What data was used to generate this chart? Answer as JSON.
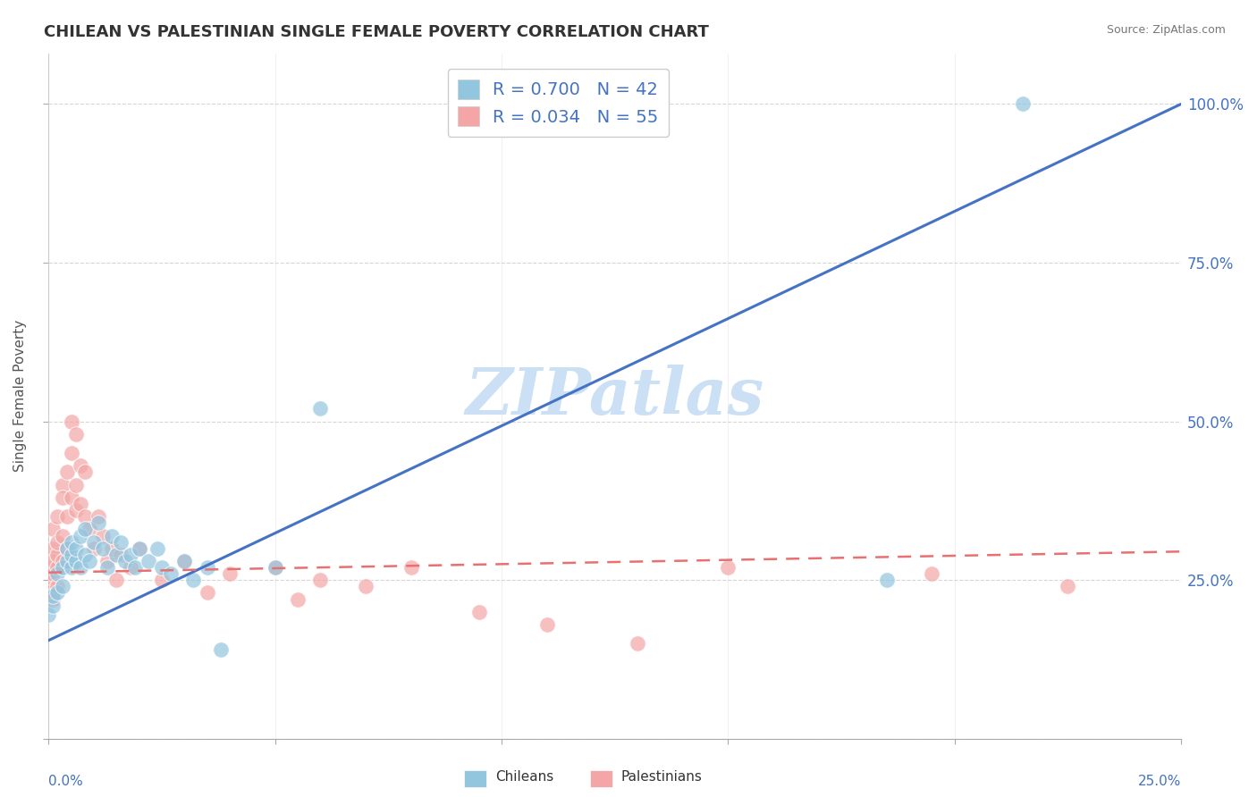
{
  "title": "CHILEAN VS PALESTINIAN SINGLE FEMALE POVERTY CORRELATION CHART",
  "source": "Source: ZipAtlas.com",
  "ylabel": "Single Female Poverty",
  "right_yticklabels": [
    "",
    "25.0%",
    "50.0%",
    "75.0%",
    "100.0%"
  ],
  "legend_entry_1": "R = 0.700   N = 42",
  "legend_entry_2": "R = 0.034   N = 55",
  "chilean_color": "#92c5de",
  "palestinian_color": "#f4a6a6",
  "chilean_trend_color": "#4472c4",
  "palestinian_trend_color": "#e87070",
  "watermark_text": "ZIPatlas",
  "watermark_color": "#cce0f5",
  "background_color": "#ffffff",
  "grid_color": "#cccccc",
  "chileans_scatter_x": [
    0.0,
    0.001,
    0.001,
    0.002,
    0.002,
    0.003,
    0.003,
    0.004,
    0.004,
    0.005,
    0.005,
    0.005,
    0.006,
    0.006,
    0.007,
    0.007,
    0.008,
    0.008,
    0.009,
    0.01,
    0.011,
    0.012,
    0.013,
    0.014,
    0.015,
    0.016,
    0.017,
    0.018,
    0.019,
    0.02,
    0.022,
    0.024,
    0.025,
    0.027,
    0.03,
    0.032,
    0.035,
    0.038,
    0.05,
    0.06,
    0.185,
    0.215
  ],
  "chileans_scatter_y": [
    0.195,
    0.21,
    0.225,
    0.23,
    0.26,
    0.27,
    0.24,
    0.28,
    0.3,
    0.27,
    0.29,
    0.31,
    0.28,
    0.3,
    0.32,
    0.27,
    0.29,
    0.33,
    0.28,
    0.31,
    0.34,
    0.3,
    0.27,
    0.32,
    0.29,
    0.31,
    0.28,
    0.29,
    0.27,
    0.3,
    0.28,
    0.3,
    0.27,
    0.26,
    0.28,
    0.25,
    0.27,
    0.14,
    0.27,
    0.52,
    0.25,
    1.0
  ],
  "palestinians_scatter_x": [
    0.0,
    0.0,
    0.0,
    0.001,
    0.001,
    0.001,
    0.001,
    0.001,
    0.002,
    0.002,
    0.002,
    0.002,
    0.002,
    0.003,
    0.003,
    0.003,
    0.003,
    0.004,
    0.004,
    0.004,
    0.005,
    0.005,
    0.005,
    0.006,
    0.006,
    0.006,
    0.007,
    0.007,
    0.008,
    0.008,
    0.009,
    0.01,
    0.011,
    0.012,
    0.013,
    0.014,
    0.015,
    0.016,
    0.018,
    0.02,
    0.025,
    0.03,
    0.035,
    0.04,
    0.05,
    0.055,
    0.06,
    0.07,
    0.08,
    0.095,
    0.11,
    0.13,
    0.15,
    0.195,
    0.225
  ],
  "palestinians_scatter_y": [
    0.25,
    0.23,
    0.27,
    0.3,
    0.26,
    0.33,
    0.22,
    0.28,
    0.35,
    0.27,
    0.29,
    0.31,
    0.24,
    0.32,
    0.28,
    0.4,
    0.38,
    0.35,
    0.42,
    0.3,
    0.45,
    0.5,
    0.38,
    0.48,
    0.4,
    0.36,
    0.43,
    0.37,
    0.35,
    0.42,
    0.33,
    0.3,
    0.35,
    0.32,
    0.28,
    0.3,
    0.25,
    0.29,
    0.27,
    0.3,
    0.25,
    0.28,
    0.23,
    0.26,
    0.27,
    0.22,
    0.25,
    0.24,
    0.27,
    0.2,
    0.18,
    0.15,
    0.27,
    0.26,
    0.24
  ],
  "chilean_trend_x": [
    0.0,
    0.25
  ],
  "chilean_trend_y": [
    0.155,
    1.0
  ],
  "palestinian_trend_x": [
    0.0,
    0.25
  ],
  "palestinian_trend_y": [
    0.262,
    0.295
  ],
  "xlim": [
    0.0,
    0.25
  ],
  "ylim": [
    0.0,
    1.08
  ]
}
